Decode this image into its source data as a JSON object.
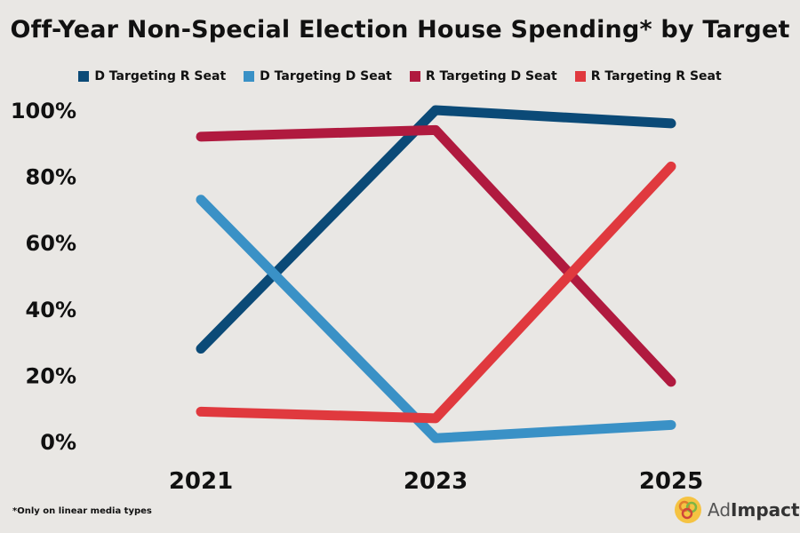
{
  "chart_data": {
    "type": "line",
    "title": "Off-Year Non-Special Election House Spending* by Target",
    "categories": [
      "2021",
      "2023",
      "2025"
    ],
    "yticks": [
      "0%",
      "20%",
      "40%",
      "60%",
      "80%",
      "100%"
    ],
    "ylim": [
      0,
      100
    ],
    "grid": false,
    "legend_position": "top",
    "series": [
      {
        "name": "D Targeting R Seat",
        "color": "#0B4A77",
        "values": [
          28,
          100,
          96
        ]
      },
      {
        "name": "D Targeting D Seat",
        "color": "#3A91C6",
        "values": [
          73,
          1,
          5
        ]
      },
      {
        "name": "R Targeting D Seat",
        "color": "#B01A3F",
        "values": [
          92,
          94,
          18
        ]
      },
      {
        "name": "R Targeting R Seat",
        "color": "#E0393E",
        "values": [
          9,
          7,
          83
        ]
      }
    ]
  },
  "footnote": "*Only on linear media types",
  "logo": {
    "prefix": "Ad",
    "suffix": "Impact"
  }
}
